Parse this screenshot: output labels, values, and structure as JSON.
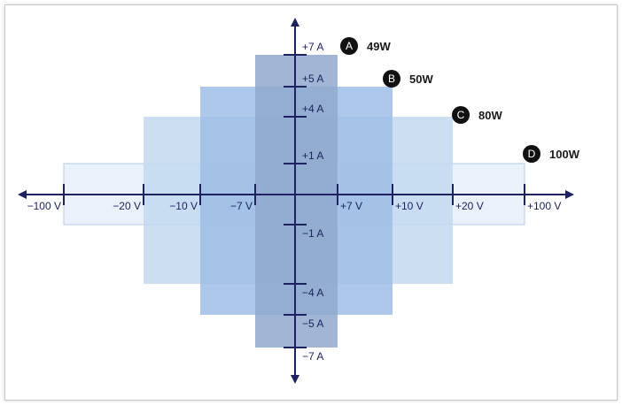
{
  "x_axis": {
    "ticks": [
      {
        "label": "−100 V",
        "value": -100
      },
      {
        "label": "−20 V",
        "value": -20
      },
      {
        "label": "−10 V",
        "value": -10
      },
      {
        "label": "−7 V",
        "value": -7
      },
      {
        "label": "+7 V",
        "value": 7
      },
      {
        "label": "+10 V",
        "value": 10
      },
      {
        "label": "+20 V",
        "value": 20
      },
      {
        "label": "+100 V",
        "value": 100
      }
    ]
  },
  "y_axis": {
    "ticks": [
      {
        "label": "+7 A",
        "value": 7
      },
      {
        "label": "+5 A",
        "value": 5
      },
      {
        "label": "+4 A",
        "value": 4
      },
      {
        "label": "+1 A",
        "value": 1
      },
      {
        "label": "−1 A",
        "value": -1
      },
      {
        "label": "−4 A",
        "value": -4
      },
      {
        "label": "−5 A",
        "value": -5
      },
      {
        "label": "−7 A",
        "value": -7
      }
    ]
  },
  "quadrants": [
    {
      "letter": "A",
      "power": "49W",
      "voltage": 7,
      "current": 7,
      "color": "#8fa9cd"
    },
    {
      "letter": "B",
      "power": "50W",
      "voltage": 10,
      "current": 5,
      "color": "#9dbde6"
    },
    {
      "letter": "C",
      "power": "80W",
      "voltage": 20,
      "current": 4,
      "color": "#c3d9f0"
    },
    {
      "letter": "D",
      "power": "100W",
      "voltage": 100,
      "current": 1,
      "color": "#e6eff9"
    }
  ],
  "colors": {
    "axis": "#1e2260",
    "badge": "#111111"
  }
}
